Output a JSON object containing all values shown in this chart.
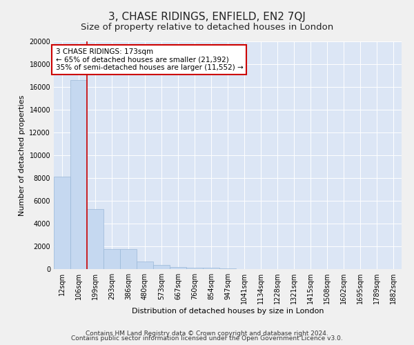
{
  "title": "3, CHASE RIDINGS, ENFIELD, EN2 7QJ",
  "subtitle": "Size of property relative to detached houses in London",
  "xlabel": "Distribution of detached houses by size in London",
  "ylabel": "Number of detached properties",
  "bar_color": "#c5d8f0",
  "bar_edge_color": "#9ab8d8",
  "background_color": "#dce6f5",
  "fig_background_color": "#f0f0f0",
  "bin_labels": [
    "12sqm",
    "106sqm",
    "199sqm",
    "293sqm",
    "386sqm",
    "480sqm",
    "573sqm",
    "667sqm",
    "760sqm",
    "854sqm",
    "947sqm",
    "1041sqm",
    "1134sqm",
    "1228sqm",
    "1321sqm",
    "1415sqm",
    "1508sqm",
    "1602sqm",
    "1695sqm",
    "1789sqm",
    "1882sqm"
  ],
  "bar_values": [
    8100,
    16600,
    5300,
    1750,
    1750,
    650,
    350,
    200,
    150,
    100,
    80,
    0,
    0,
    0,
    0,
    0,
    0,
    0,
    0,
    0,
    0
  ],
  "ylim": [
    0,
    20000
  ],
  "yticks": [
    0,
    2000,
    4000,
    6000,
    8000,
    10000,
    12000,
    14000,
    16000,
    18000,
    20000
  ],
  "vline_color": "#cc0000",
  "annotation_text": "3 CHASE RIDINGS: 173sqm\n← 65% of detached houses are smaller (21,392)\n35% of semi-detached houses are larger (11,552) →",
  "annotation_box_color": "#ffffff",
  "annotation_box_edge_color": "#cc0000",
  "footnote_line1": "Contains HM Land Registry data © Crown copyright and database right 2024.",
  "footnote_line2": "Contains public sector information licensed under the Open Government Licence v3.0.",
  "title_fontsize": 11,
  "subtitle_fontsize": 9.5,
  "label_fontsize": 8,
  "tick_fontsize": 7,
  "annotation_fontsize": 7.5,
  "footnote_fontsize": 6.5
}
